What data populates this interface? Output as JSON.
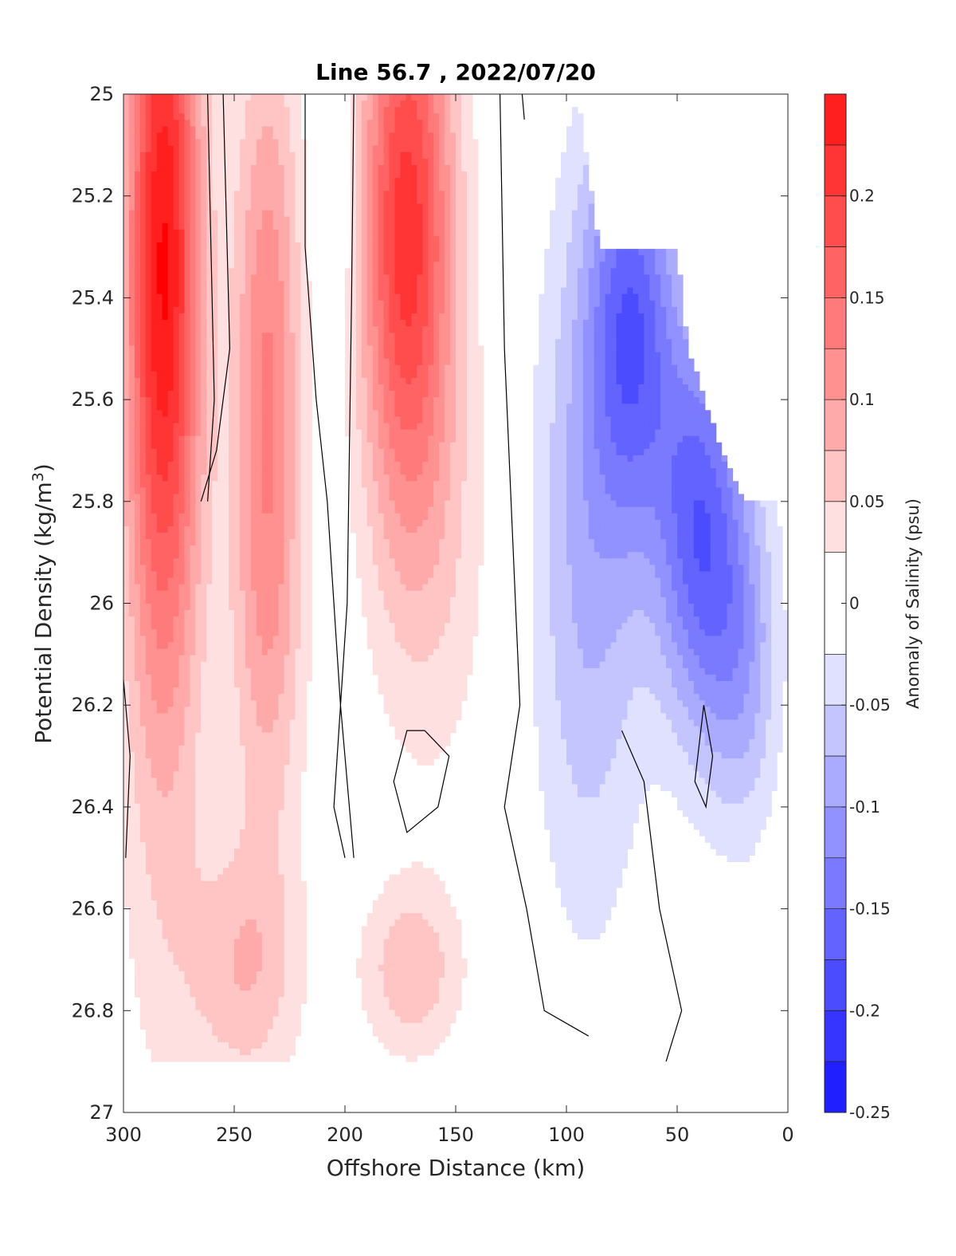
{
  "chart_data": {
    "type": "heatmap",
    "title": "Line 56.7 , 2022/07/20",
    "xlabel": "Offshore Distance (km)",
    "ylabel": "Potential Density (kg/m3)",
    "ylabel_parts": {
      "main": "Potential Density (kg/m",
      "sup": "3",
      "end": ")"
    },
    "xlim": [
      300,
      0
    ],
    "ylim": [
      25,
      27
    ],
    "x_ticks": [
      300,
      250,
      200,
      150,
      100,
      50,
      0
    ],
    "y_ticks": [
      25,
      25.2,
      25.4,
      25.6,
      25.8,
      26,
      26.2,
      26.4,
      26.6,
      26.8,
      27
    ],
    "y_tick_labels": [
      "25",
      "25.2",
      "25.4",
      "25.6",
      "25.8",
      "26",
      "26.2",
      "26.4",
      "26.6",
      "26.8",
      "27"
    ],
    "x_tick_labels": [
      "300",
      "250",
      "200",
      "150",
      "100",
      "50",
      "0"
    ],
    "colorbar": {
      "label": "Anomaly of Salinity (psu)",
      "range": [
        -0.25,
        0.25
      ],
      "ticks": [
        0.2,
        0.15,
        0.1,
        0.05,
        0,
        -0.05,
        -0.1,
        -0.15,
        -0.2,
        -0.25
      ],
      "tick_labels": [
        "0.2",
        "0.15",
        "0.1",
        "0.05",
        "0",
        "-0.05",
        "-0.1",
        "-0.15",
        "-0.2",
        "-0.25"
      ],
      "levels": [
        0.25,
        0.225,
        0.2,
        0.175,
        0.15,
        0.125,
        0.1,
        0.075,
        0.05,
        0.025,
        -0.025,
        -0.05,
        -0.075,
        -0.1,
        -0.125,
        -0.15,
        -0.175,
        -0.2,
        -0.225,
        -0.25
      ],
      "colors": [
        "#ff0000",
        "#ff1f1f",
        "#ff3535",
        "#ff4c4c",
        "#ff6363",
        "#ff7a7a",
        "#ff9191",
        "#ffaaaa",
        "#ffc4c4",
        "#ffe0e0",
        "#ffffff",
        "#e0e0ff",
        "#c4c4ff",
        "#aaaaff",
        "#9191ff",
        "#7a7aff",
        "#6363ff",
        "#4c4cff",
        "#3535ff",
        "#1f1fff",
        "#0000ff"
      ]
    },
    "colormap": "red-white-blue diverging",
    "data_bottom_density": 26.9,
    "features": [
      {
        "x": 282,
        "y": 25.3,
        "value": 0.24
      },
      {
        "x": 235,
        "y": 25.5,
        "value": 0.12
      },
      {
        "x": 172,
        "y": 25.25,
        "value": 0.21
      },
      {
        "x": 245,
        "y": 26.72,
        "value": 0.07
      },
      {
        "x": 170,
        "y": 26.72,
        "value": 0.07
      },
      {
        "x": 70,
        "y": 25.45,
        "value": -0.15
      },
      {
        "x": 40,
        "y": 25.85,
        "value": -0.16
      },
      {
        "x": 205,
        "y": 25.15,
        "value": -0.04
      }
    ],
    "colors": {
      "positive": "#ff0000",
      "negative": "#0000ff",
      "neutral": "#ffffff",
      "contour": "#000000"
    }
  }
}
